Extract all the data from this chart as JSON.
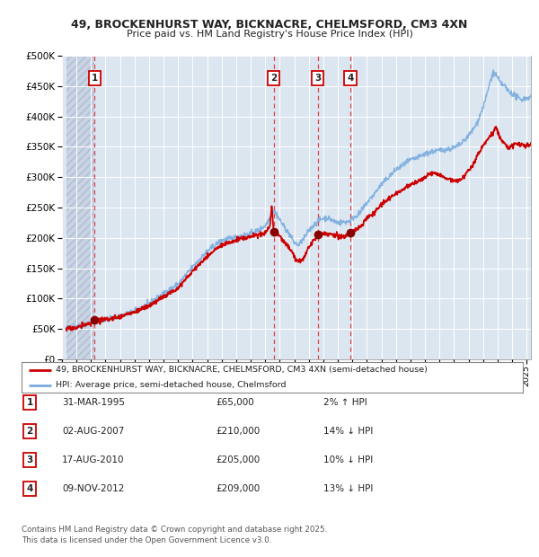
{
  "title_line1": "49, BROCKENHURST WAY, BICKNACRE, CHELMSFORD, CM3 4XN",
  "title_line2": "Price paid vs. HM Land Registry's House Price Index (HPI)",
  "background_color": "#ffffff",
  "plot_bg_color": "#dce6f0",
  "grid_color": "#ffffff",
  "hatch_color": "#c8d4e4",
  "red_line_color": "#cc0000",
  "blue_line_color": "#7aade0",
  "sale_marker_color": "#880000",
  "dashed_line_color": "#dd4444",
  "legend_line1": "49, BROCKENHURST WAY, BICKNACRE, CHELMSFORD, CM3 4XN (semi-detached house)",
  "legend_line2": "HPI: Average price, semi-detached house, Chelmsford",
  "table_rows": [
    {
      "num": "1",
      "date": "31-MAR-1995",
      "price": "£65,000",
      "hpi": "2% ↑ HPI"
    },
    {
      "num": "2",
      "date": "02-AUG-2007",
      "price": "£210,000",
      "hpi": "14% ↓ HPI"
    },
    {
      "num": "3",
      "date": "17-AUG-2010",
      "price": "£205,000",
      "hpi": "10% ↓ HPI"
    },
    {
      "num": "4",
      "date": "09-NOV-2012",
      "price": "£209,000",
      "hpi": "13% ↓ HPI"
    }
  ],
  "footnote": "Contains HM Land Registry data © Crown copyright and database right 2025.\nThis data is licensed under the Open Government Licence v3.0.",
  "ylim": [
    0,
    500000
  ],
  "yticks": [
    0,
    50000,
    100000,
    150000,
    200000,
    250000,
    300000,
    350000,
    400000,
    450000,
    500000
  ],
  "xlim_start": 1993.3,
  "xlim_end": 2025.3,
  "sale_dates": [
    1995.25,
    2007.58,
    2010.63,
    2012.86
  ],
  "sale_prices": [
    65000,
    210000,
    205000,
    209000
  ],
  "sale_labels": [
    "1",
    "2",
    "3",
    "4"
  ],
  "hatch_end": 1995.25
}
